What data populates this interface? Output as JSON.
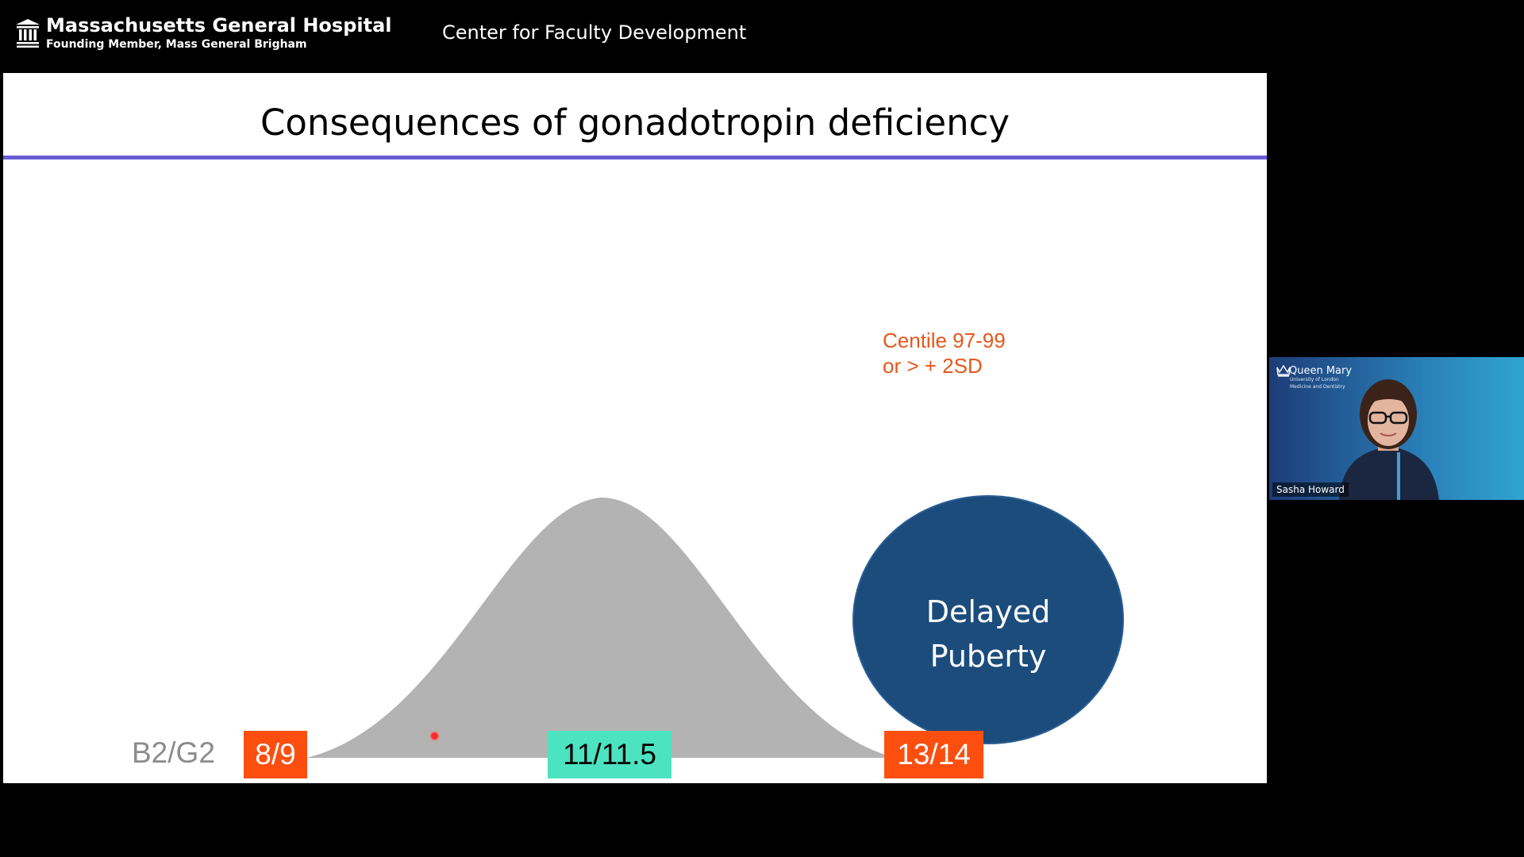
{
  "header": {
    "brand_name": "Massachusetts General Hospital",
    "brand_subtitle": "Founding Member, Mass General Brigham",
    "center_title": "Center for Faculty Development",
    "icon": "hospital-building-icon"
  },
  "slide": {
    "title": "Consequences of gonadotropin deficiency",
    "rule_color": "#6a5cd6",
    "annotation": {
      "line1": "Centile 97-99",
      "line2": "or > + 2SD",
      "color": "#e8571b"
    },
    "circle": {
      "line1": "Delayed",
      "line2": "Puberty",
      "color": "#1c4c7c"
    },
    "stage_label": "B2/G2",
    "age_boxes": {
      "early": "8/9",
      "median": "11/11.5",
      "late": "13/14"
    },
    "colors": {
      "orange": "#fc4f0f",
      "teal": "#4ce3c0",
      "curve": "#b3b3b3"
    }
  },
  "video": {
    "org_name": "Queen Mary",
    "org_line1": "University of London",
    "org_line2": "Medicine and Dentistry",
    "participant_name": "Sasha Howard",
    "icon": "crown-logo-icon"
  }
}
